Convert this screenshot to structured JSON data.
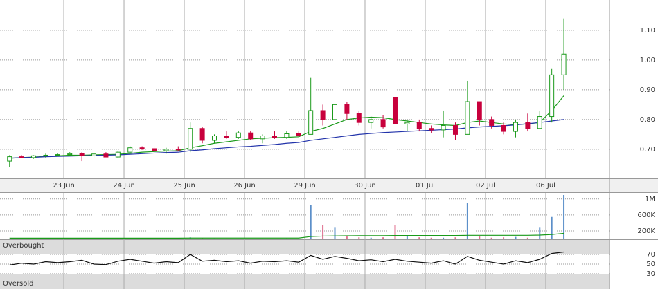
{
  "chart_data": [
    {
      "type": "candlestick",
      "xlim": [
        -0.79,
        49.79
      ],
      "xticks": [
        {
          "value": 4.5,
          "label": "23 Jun"
        },
        {
          "value": 9.5,
          "label": "24 Jun"
        },
        {
          "value": 14.5,
          "label": "25 Jun"
        },
        {
          "value": 19.5,
          "label": "26 Jun"
        },
        {
          "value": 24.5,
          "label": "29 Jun"
        },
        {
          "value": 29.5,
          "label": "30 Jun"
        },
        {
          "value": 34.5,
          "label": "01 Jul"
        },
        {
          "value": 39.5,
          "label": "02 Jul"
        },
        {
          "value": 44.5,
          "label": "06 Jul"
        }
      ],
      "ylim": [
        0.602,
        1.202
      ],
      "yticks": [
        {
          "value": 0.7,
          "label": "0.70"
        },
        {
          "value": 0.8,
          "label": "0.80"
        },
        {
          "value": 0.9,
          "label": "0.90"
        },
        {
          "value": 1.0,
          "label": "1.00"
        },
        {
          "value": 1.1,
          "label": "1.10"
        }
      ],
      "grid": true,
      "up_color": "#1a9a1a",
      "down_color": "#c8003c",
      "candles": [
        [
          0.66,
          0.68,
          0.64,
          0.675
        ],
        [
          0.675,
          0.68,
          0.67,
          0.672
        ],
        [
          0.672,
          0.68,
          0.668,
          0.678
        ],
        [
          0.678,
          0.685,
          0.672,
          0.68
        ],
        [
          0.68,
          0.685,
          0.676,
          0.682
        ],
        [
          0.682,
          0.69,
          0.678,
          0.685
        ],
        [
          0.685,
          0.69,
          0.66,
          0.678
        ],
        [
          0.678,
          0.688,
          0.67,
          0.684
        ],
        [
          0.684,
          0.69,
          0.676,
          0.674
        ],
        [
          0.674,
          0.695,
          0.672,
          0.69
        ],
        [
          0.69,
          0.71,
          0.688,
          0.705
        ],
        [
          0.705,
          0.71,
          0.698,
          0.702
        ],
        [
          0.702,
          0.71,
          0.69,
          0.695
        ],
        [
          0.695,
          0.705,
          0.685,
          0.7
        ],
        [
          0.7,
          0.71,
          0.695,
          0.698
        ],
        [
          0.7,
          0.79,
          0.69,
          0.77
        ],
        [
          0.77,
          0.775,
          0.72,
          0.73
        ],
        [
          0.73,
          0.75,
          0.72,
          0.745
        ],
        [
          0.745,
          0.76,
          0.735,
          0.74
        ],
        [
          0.74,
          0.76,
          0.735,
          0.755
        ],
        [
          0.755,
          0.76,
          0.73,
          0.735
        ],
        [
          0.735,
          0.75,
          0.72,
          0.745
        ],
        [
          0.745,
          0.76,
          0.735,
          0.74
        ],
        [
          0.74,
          0.76,
          0.735,
          0.752
        ],
        [
          0.752,
          0.76,
          0.742,
          0.745
        ],
        [
          0.75,
          0.94,
          0.75,
          0.83
        ],
        [
          0.83,
          0.85,
          0.78,
          0.8
        ],
        [
          0.8,
          0.86,
          0.79,
          0.85
        ],
        [
          0.85,
          0.86,
          0.8,
          0.82
        ],
        [
          0.82,
          0.83,
          0.78,
          0.79
        ],
        [
          0.79,
          0.81,
          0.77,
          0.8
        ],
        [
          0.8,
          0.815,
          0.77,
          0.775
        ],
        [
          0.875,
          0.875,
          0.78,
          0.785
        ],
        [
          0.785,
          0.8,
          0.76,
          0.79
        ],
        [
          0.79,
          0.8,
          0.76,
          0.77
        ],
        [
          0.77,
          0.78,
          0.755,
          0.765
        ],
        [
          0.765,
          0.83,
          0.74,
          0.78
        ],
        [
          0.78,
          0.79,
          0.73,
          0.75
        ],
        [
          0.75,
          0.93,
          0.75,
          0.86
        ],
        [
          0.86,
          0.86,
          0.78,
          0.8
        ],
        [
          0.8,
          0.81,
          0.77,
          0.78
        ],
        [
          0.78,
          0.79,
          0.75,
          0.76
        ],
        [
          0.76,
          0.8,
          0.74,
          0.79
        ],
        [
          0.79,
          0.82,
          0.76,
          0.77
        ],
        [
          0.77,
          0.83,
          0.77,
          0.81
        ],
        [
          0.81,
          0.97,
          0.79,
          0.95
        ],
        [
          0.95,
          1.14,
          0.9,
          1.02
        ]
      ],
      "series": [
        {
          "color": "#1a9a1a",
          "values": [
            0.67,
            0.672,
            0.674,
            0.676,
            0.678,
            0.68,
            0.68,
            0.681,
            0.682,
            0.683,
            0.686,
            0.69,
            0.692,
            0.694,
            0.695,
            0.705,
            0.712,
            0.72,
            0.725,
            0.73,
            0.735,
            0.737,
            0.739,
            0.74,
            0.742,
            0.76,
            0.77,
            0.785,
            0.8,
            0.805,
            0.808,
            0.806,
            0.8,
            0.795,
            0.79,
            0.785,
            0.782,
            0.78,
            0.79,
            0.795,
            0.79,
            0.785,
            0.783,
            0.785,
            0.79,
            0.83,
            0.88
          ]
        },
        {
          "color": "#2233aa",
          "values": [
            0.67,
            0.672,
            0.673,
            0.675,
            0.676,
            0.677,
            0.678,
            0.679,
            0.68,
            0.681,
            0.683,
            0.685,
            0.687,
            0.689,
            0.69,
            0.695,
            0.698,
            0.702,
            0.705,
            0.708,
            0.71,
            0.713,
            0.716,
            0.72,
            0.723,
            0.73,
            0.735,
            0.74,
            0.745,
            0.75,
            0.753,
            0.756,
            0.758,
            0.76,
            0.762,
            0.764,
            0.766,
            0.768,
            0.772,
            0.775,
            0.777,
            0.779,
            0.782,
            0.786,
            0.79,
            0.795,
            0.8
          ]
        }
      ]
    },
    {
      "type": "bar",
      "ylim": [
        0,
        1100000
      ],
      "yticks": [
        {
          "value": 200000,
          "label": "200K"
        },
        {
          "value": 600000,
          "label": "600K"
        },
        {
          "value": 1000000,
          "label": "1M"
        }
      ],
      "up_color": "#5b8fc9",
      "down_color": "#e07090",
      "values": [
        10000,
        8000,
        6000,
        9000,
        7000,
        8000,
        12000,
        6000,
        7000,
        9000,
        10000,
        8000,
        6000,
        9000,
        7000,
        40000,
        20000,
        12000,
        10000,
        9000,
        8000,
        10000,
        9000,
        12000,
        8000,
        850000,
        350000,
        280000,
        60000,
        40000,
        30000,
        40000,
        350000,
        60000,
        40000,
        30000,
        30000,
        40000,
        900000,
        60000,
        30000,
        40000,
        50000,
        30000,
        280000,
        550000,
        1100000
      ],
      "ma": {
        "color": "#1a9a1a",
        "values": [
          20000,
          20000,
          20000,
          20000,
          20000,
          20000,
          20000,
          20000,
          20000,
          20000,
          20000,
          20000,
          20000,
          20000,
          20000,
          22000,
          22000,
          22000,
          22000,
          22000,
          22000,
          22000,
          22000,
          22000,
          22000,
          60000,
          70000,
          75000,
          78000,
          80000,
          80000,
          80000,
          85000,
          85000,
          85000,
          85000,
          85000,
          85000,
          90000,
          90000,
          90000,
          90000,
          90000,
          90000,
          95000,
          110000,
          140000
        ]
      }
    },
    {
      "type": "line",
      "ylim": [
        0,
        100
      ],
      "yticks": [
        30,
        50,
        70
      ],
      "annotations": [
        "Overbought",
        "Oversold"
      ],
      "color": "#111111",
      "values": [
        48,
        52,
        50,
        55,
        53,
        55,
        58,
        50,
        49,
        56,
        60,
        56,
        52,
        55,
        53,
        70,
        56,
        58,
        55,
        57,
        52,
        56,
        55,
        57,
        54,
        68,
        60,
        66,
        62,
        57,
        59,
        55,
        60,
        56,
        54,
        52,
        57,
        50,
        66,
        58,
        54,
        50,
        57,
        53,
        60,
        72,
        75
      ]
    }
  ]
}
